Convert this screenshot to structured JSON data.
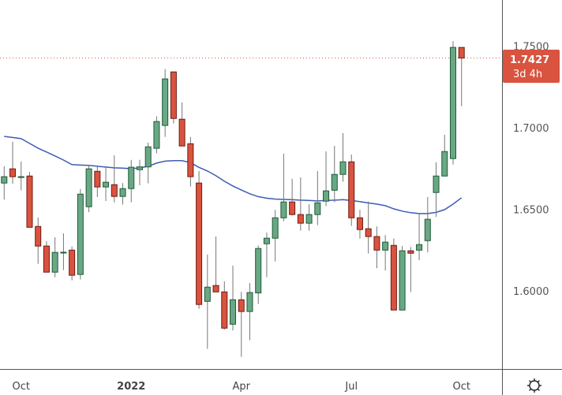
{
  "chart_data": {
    "type": "candlestick",
    "title": "",
    "xlabel": "",
    "ylabel": "",
    "ylim": [
      1.545,
      1.776
    ],
    "grid": false,
    "y_ticks": [
      "1.7500",
      "1.7000",
      "1.6500",
      "1.6000"
    ],
    "x_ticks": [
      {
        "label": "Oct",
        "index": 2,
        "bold": false
      },
      {
        "label": "2022",
        "index": 15,
        "bold": true
      },
      {
        "label": "Apr",
        "index": 28,
        "bold": false
      },
      {
        "label": "Jul",
        "index": 41,
        "bold": false
      },
      {
        "label": "Oct",
        "index": 54,
        "bold": false
      }
    ],
    "colors": {
      "up": "#6aa885",
      "up_border": "#1e5a36",
      "down": "#d9533f",
      "down_border": "#6e1a12",
      "wick": "#777777",
      "ma": "#3f5bb5",
      "last_price": "#d9533f"
    },
    "ohlc": [
      [
        1.6661,
        1.6764,
        1.656,
        1.67
      ],
      [
        1.6748,
        1.6914,
        1.6656,
        1.67
      ],
      [
        1.67,
        1.6793,
        1.6616,
        1.67
      ],
      [
        1.6704,
        1.6729,
        1.639,
        1.639
      ],
      [
        1.6395,
        1.645,
        1.6166,
        1.6275
      ],
      [
        1.6275,
        1.6305,
        1.6115,
        1.6115
      ],
      [
        1.6115,
        1.6329,
        1.6084,
        1.6236
      ],
      [
        1.6236,
        1.6353,
        1.6128,
        1.6237
      ],
      [
        1.625,
        1.6273,
        1.6065,
        1.6096
      ],
      [
        1.6101,
        1.6624,
        1.607,
        1.6593
      ],
      [
        1.6516,
        1.6772,
        1.6482,
        1.6748
      ],
      [
        1.6733,
        1.6769,
        1.6575,
        1.6637
      ],
      [
        1.6637,
        1.676,
        1.6551,
        1.6666
      ],
      [
        1.6651,
        1.6831,
        1.6543,
        1.6579
      ],
      [
        1.6579,
        1.6661,
        1.6529,
        1.6627
      ],
      [
        1.6627,
        1.6803,
        1.6543,
        1.6758
      ],
      [
        1.6743,
        1.6803,
        1.6648,
        1.676
      ],
      [
        1.676,
        1.6909,
        1.6659,
        1.6883
      ],
      [
        1.6874,
        1.707,
        1.6843,
        1.7038
      ],
      [
        1.7014,
        1.7359,
        1.6944,
        1.7299
      ],
      [
        1.7342,
        1.7342,
        1.7026,
        1.7057
      ],
      [
        1.7052,
        1.7155,
        1.6888,
        1.6888
      ],
      [
        1.6902,
        1.6943,
        1.664,
        1.67
      ],
      [
        1.6661,
        1.6735,
        1.5891,
        1.5917
      ],
      [
        1.5936,
        1.6223,
        1.5645,
        1.6023
      ],
      [
        1.6033,
        1.6334,
        1.5994,
        1.5994
      ],
      [
        1.5994,
        1.6059,
        1.5763,
        1.5772
      ],
      [
        1.5796,
        1.6155,
        1.5758,
        1.5946
      ],
      [
        1.5946,
        1.5994,
        1.5596,
        1.5874
      ],
      [
        1.5874,
        1.6049,
        1.5698,
        1.599
      ],
      [
        1.5988,
        1.6279,
        1.592,
        1.626
      ],
      [
        1.6289,
        1.6358,
        1.6084,
        1.6323
      ],
      [
        1.6323,
        1.6497,
        1.6181,
        1.6448
      ],
      [
        1.6448,
        1.6841,
        1.6427,
        1.6545
      ],
      [
        1.6545,
        1.6687,
        1.6463,
        1.6468
      ],
      [
        1.6468,
        1.6696,
        1.6369,
        1.6415
      ],
      [
        1.6415,
        1.6531,
        1.6369,
        1.6468
      ],
      [
        1.6468,
        1.6735,
        1.6403,
        1.654
      ],
      [
        1.655,
        1.6856,
        1.6519,
        1.6613
      ],
      [
        1.6617,
        1.6889,
        1.6543,
        1.6714
      ],
      [
        1.6714,
        1.6967,
        1.6669,
        1.6791
      ],
      [
        1.6791,
        1.6836,
        1.6398,
        1.6448
      ],
      [
        1.6448,
        1.6497,
        1.6321,
        1.6376
      ],
      [
        1.6381,
        1.6548,
        1.6229,
        1.6333
      ],
      [
        1.6333,
        1.6395,
        1.6139,
        1.625
      ],
      [
        1.625,
        1.6342,
        1.6125,
        1.6299
      ],
      [
        1.6279,
        1.6321,
        1.5883,
        1.5883
      ],
      [
        1.5883,
        1.6275,
        1.5883,
        1.6246
      ],
      [
        1.6246,
        1.627,
        1.5993,
        1.6231
      ],
      [
        1.625,
        1.6477,
        1.6188,
        1.6284
      ],
      [
        1.6308,
        1.6575,
        1.6236,
        1.6439
      ],
      [
        1.6603,
        1.6788,
        1.6453,
        1.6704
      ],
      [
        1.6704,
        1.6957,
        1.6704,
        1.6854
      ],
      [
        1.6811,
        1.753,
        1.6775,
        1.7492
      ],
      [
        1.7492,
        1.7492,
        1.7132,
        1.7427
      ]
    ],
    "moving_average": [
      1.6947,
      1.694,
      1.6933,
      1.6904,
      1.6875,
      1.6851,
      1.6827,
      1.6802,
      1.6774,
      1.6771,
      1.6769,
      1.6764,
      1.6759,
      1.6754,
      1.6752,
      1.6749,
      1.6754,
      1.6764,
      1.6783,
      1.6795,
      1.6798,
      1.6798,
      1.6786,
      1.6757,
      1.6735,
      1.6706,
      1.6672,
      1.6643,
      1.6619,
      1.6595,
      1.6578,
      1.6568,
      1.6563,
      1.6561,
      1.6559,
      1.6556,
      1.6554,
      1.6551,
      1.6554,
      1.6556,
      1.6559,
      1.6554,
      1.6547,
      1.6539,
      1.6532,
      1.6522,
      1.6503,
      1.6489,
      1.6479,
      1.6474,
      1.6474,
      1.6481,
      1.6498,
      1.6532,
      1.6571
    ],
    "last_price": {
      "value": 1.7427,
      "label": "1.7427",
      "countdown": "3d 4h"
    }
  },
  "icons": {
    "settings": "gear-icon"
  }
}
